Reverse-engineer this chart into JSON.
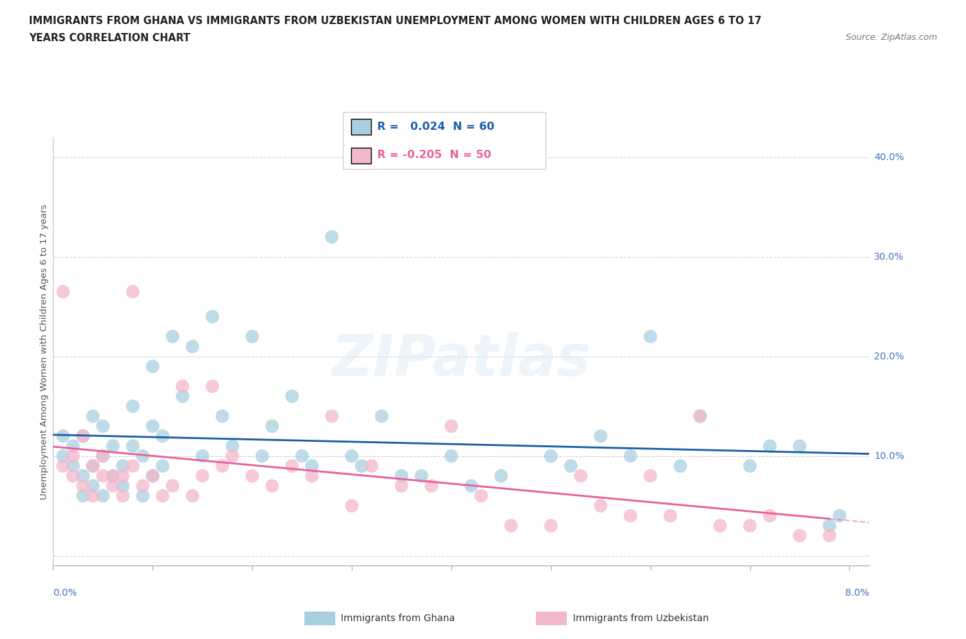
{
  "title_line1": "IMMIGRANTS FROM GHANA VS IMMIGRANTS FROM UZBEKISTAN UNEMPLOYMENT AMONG WOMEN WITH CHILDREN AGES 6 TO 17",
  "title_line2": "YEARS CORRELATION CHART",
  "source_text": "Source: ZipAtlas.com",
  "ylabel": "Unemployment Among Women with Children Ages 6 to 17 years",
  "xlim": [
    0.0,
    0.082
  ],
  "ylim": [
    -0.01,
    0.42
  ],
  "yticks": [
    0.0,
    0.1,
    0.2,
    0.3,
    0.4
  ],
  "ytick_labels": [
    "",
    "10.0%",
    "20.0%",
    "30.0%",
    "40.0%"
  ],
  "legend_ghana_R": " 0.024",
  "legend_ghana_N": "60",
  "legend_uzbek_R": "-0.205",
  "legend_uzbek_N": "50",
  "watermark": "ZIPatlas",
  "ghana_color": "#a8cfe0",
  "uzbek_color": "#f4b8cc",
  "ghana_line_color": "#1a5fa8",
  "uzbek_line_color": "#e8609a",
  "ghana_points_x": [
    0.001,
    0.001,
    0.002,
    0.002,
    0.003,
    0.003,
    0.003,
    0.004,
    0.004,
    0.004,
    0.005,
    0.005,
    0.005,
    0.006,
    0.006,
    0.007,
    0.007,
    0.008,
    0.008,
    0.009,
    0.009,
    0.01,
    0.01,
    0.01,
    0.011,
    0.011,
    0.012,
    0.013,
    0.014,
    0.015,
    0.016,
    0.017,
    0.018,
    0.02,
    0.021,
    0.022,
    0.024,
    0.025,
    0.026,
    0.028,
    0.03,
    0.031,
    0.033,
    0.035,
    0.037,
    0.04,
    0.042,
    0.045,
    0.05,
    0.052,
    0.055,
    0.058,
    0.06,
    0.063,
    0.065,
    0.07,
    0.072,
    0.075,
    0.078,
    0.079
  ],
  "ghana_points_y": [
    0.1,
    0.12,
    0.09,
    0.11,
    0.06,
    0.08,
    0.12,
    0.07,
    0.09,
    0.14,
    0.06,
    0.1,
    0.13,
    0.08,
    0.11,
    0.07,
    0.09,
    0.11,
    0.15,
    0.06,
    0.1,
    0.08,
    0.13,
    0.19,
    0.09,
    0.12,
    0.22,
    0.16,
    0.21,
    0.1,
    0.24,
    0.14,
    0.11,
    0.22,
    0.1,
    0.13,
    0.16,
    0.1,
    0.09,
    0.32,
    0.1,
    0.09,
    0.14,
    0.08,
    0.08,
    0.1,
    0.07,
    0.08,
    0.1,
    0.09,
    0.12,
    0.1,
    0.22,
    0.09,
    0.14,
    0.09,
    0.11,
    0.11,
    0.03,
    0.04
  ],
  "uzbek_points_x": [
    0.001,
    0.001,
    0.002,
    0.002,
    0.003,
    0.003,
    0.004,
    0.004,
    0.005,
    0.005,
    0.006,
    0.006,
    0.007,
    0.007,
    0.008,
    0.008,
    0.009,
    0.01,
    0.011,
    0.012,
    0.013,
    0.014,
    0.015,
    0.016,
    0.017,
    0.018,
    0.02,
    0.022,
    0.024,
    0.026,
    0.028,
    0.03,
    0.032,
    0.035,
    0.038,
    0.04,
    0.043,
    0.046,
    0.05,
    0.053,
    0.055,
    0.058,
    0.06,
    0.062,
    0.065,
    0.067,
    0.07,
    0.072,
    0.075,
    0.078
  ],
  "uzbek_points_y": [
    0.265,
    0.09,
    0.1,
    0.08,
    0.07,
    0.12,
    0.06,
    0.09,
    0.08,
    0.1,
    0.07,
    0.08,
    0.06,
    0.08,
    0.09,
    0.265,
    0.07,
    0.08,
    0.06,
    0.07,
    0.17,
    0.06,
    0.08,
    0.17,
    0.09,
    0.1,
    0.08,
    0.07,
    0.09,
    0.08,
    0.14,
    0.05,
    0.09,
    0.07,
    0.07,
    0.13,
    0.06,
    0.03,
    0.03,
    0.08,
    0.05,
    0.04,
    0.08,
    0.04,
    0.14,
    0.03,
    0.03,
    0.04,
    0.02,
    0.02
  ],
  "background_color": "#ffffff",
  "grid_color": "#cccccc",
  "title_color": "#222222",
  "axis_label_color": "#4472c4"
}
